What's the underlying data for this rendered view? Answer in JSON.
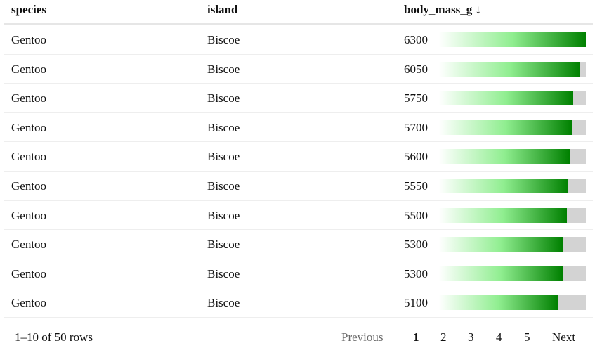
{
  "table": {
    "headers": {
      "species": "species",
      "island": "island",
      "body_mass_g": "body_mass_g ↓"
    },
    "bar_max": 6300,
    "rows": [
      {
        "species": "Gentoo",
        "island": "Biscoe",
        "body_mass_g": "6300",
        "bar_fraction": 1.0
      },
      {
        "species": "Gentoo",
        "island": "Biscoe",
        "body_mass_g": "6050",
        "bar_fraction": 0.9603
      },
      {
        "species": "Gentoo",
        "island": "Biscoe",
        "body_mass_g": "5750",
        "bar_fraction": 0.9127
      },
      {
        "species": "Gentoo",
        "island": "Biscoe",
        "body_mass_g": "5700",
        "bar_fraction": 0.9048
      },
      {
        "species": "Gentoo",
        "island": "Biscoe",
        "body_mass_g": "5600",
        "bar_fraction": 0.8889
      },
      {
        "species": "Gentoo",
        "island": "Biscoe",
        "body_mass_g": "5550",
        "bar_fraction": 0.881
      },
      {
        "species": "Gentoo",
        "island": "Biscoe",
        "body_mass_g": "5500",
        "bar_fraction": 0.873
      },
      {
        "species": "Gentoo",
        "island": "Biscoe",
        "body_mass_g": "5300",
        "bar_fraction": 0.8413
      },
      {
        "species": "Gentoo",
        "island": "Biscoe",
        "body_mass_g": "5300",
        "bar_fraction": 0.8413
      },
      {
        "species": "Gentoo",
        "island": "Biscoe",
        "body_mass_g": "5100",
        "bar_fraction": 0.8095
      }
    ]
  },
  "bar_colors": {
    "track": "#d3d3d3",
    "gradient_start": "#ffffff",
    "gradient_mid": "#90ee90",
    "gradient_end": "#008000"
  },
  "footer": {
    "range_info": "1–10 of 50 rows",
    "previous_label": "Previous",
    "pages": [
      "1",
      "2",
      "3",
      "4",
      "5"
    ],
    "current_page": "1",
    "next_label": "Next"
  }
}
